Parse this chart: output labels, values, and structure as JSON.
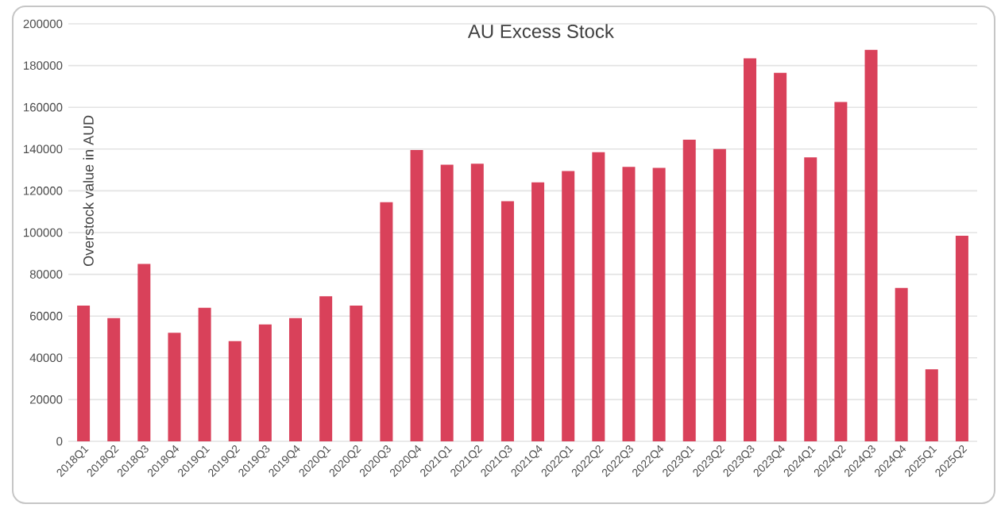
{
  "chart_data": {
    "type": "bar",
    "title": "AU Excess Stock",
    "ylabel": "Overstock value in AUD",
    "categories": [
      "2018Q1",
      "2018Q2",
      "2018Q3",
      "2018Q4",
      "2019Q1",
      "2019Q2",
      "2019Q3",
      "2019Q4",
      "2020Q1",
      "2020Q2",
      "2020Q3",
      "2020Q4",
      "2021Q1",
      "2021Q2",
      "2021Q3",
      "2021Q4",
      "2022Q1",
      "2022Q2",
      "2022Q3",
      "2022Q4",
      "2023Q1",
      "2023Q2",
      "2023Q3",
      "2023Q4",
      "2024Q1",
      "2024Q2",
      "2024Q3",
      "2024Q4",
      "2025Q1",
      "2025Q2"
    ],
    "values": [
      65000,
      59000,
      85000,
      52000,
      64000,
      48000,
      56000,
      59000,
      69500,
      65000,
      114500,
      139500,
      132500,
      133000,
      115000,
      124000,
      129500,
      138500,
      131500,
      131000,
      144500,
      140000,
      183500,
      176500,
      136000,
      162500,
      187500,
      73500,
      34500,
      98500
    ],
    "color": "#d9415a",
    "ylim": [
      0,
      200000
    ],
    "yticks": [
      0,
      20000,
      40000,
      60000,
      80000,
      100000,
      120000,
      140000,
      160000,
      180000,
      200000
    ],
    "grid": "y"
  }
}
